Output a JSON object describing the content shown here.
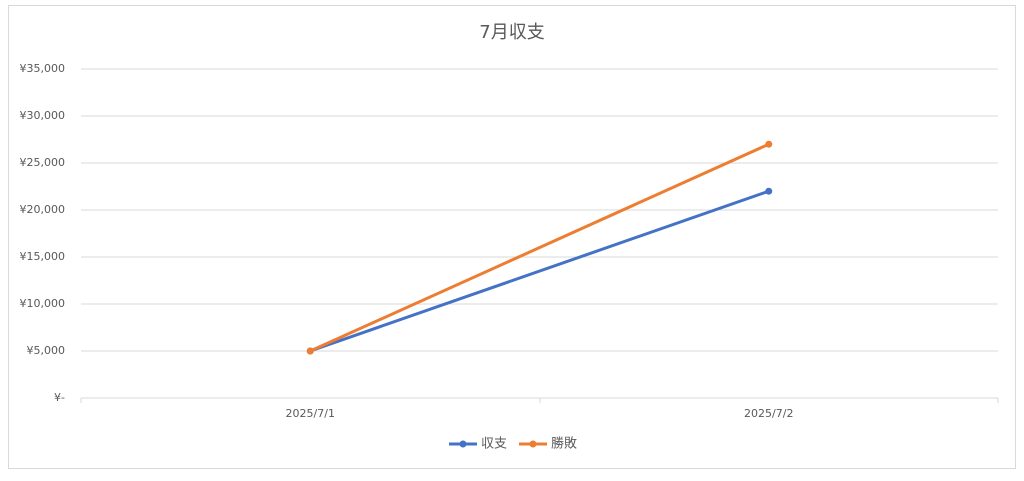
{
  "chart_data": {
    "type": "line",
    "title": "7月収支",
    "categories": [
      "2025/7/1",
      "2025/7/2"
    ],
    "series": [
      {
        "name": "収支",
        "color": "#4472c4",
        "values": [
          5000,
          22000
        ]
      },
      {
        "name": "勝敗",
        "color": "#ed7d31",
        "values": [
          5000,
          27000
        ]
      }
    ],
    "ylim": [
      0,
      35000
    ],
    "yticks": [
      {
        "value": 0,
        "label": "¥-"
      },
      {
        "value": 5000,
        "label": "¥5,000"
      },
      {
        "value": 10000,
        "label": "¥10,000"
      },
      {
        "value": 15000,
        "label": "¥15,000"
      },
      {
        "value": 20000,
        "label": "¥20,000"
      },
      {
        "value": 25000,
        "label": "¥25,000"
      },
      {
        "value": 30000,
        "label": "¥30,000"
      },
      {
        "value": 35000,
        "label": "¥35,000"
      }
    ],
    "grid": true,
    "legend": "bottom"
  }
}
